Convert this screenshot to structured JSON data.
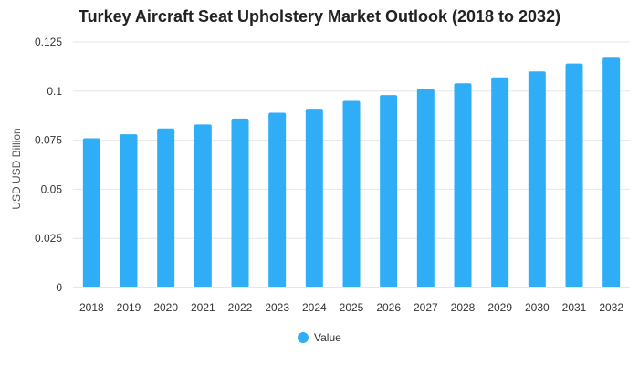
{
  "chart_data": {
    "type": "bar",
    "title": "Turkey Aircraft Seat Upholstery Market Outlook (2018 to 2032)",
    "xlabel": "",
    "ylabel": "USD USD Billion",
    "categories": [
      "2018",
      "2019",
      "2020",
      "2021",
      "2022",
      "2023",
      "2024",
      "2025",
      "2026",
      "2027",
      "2028",
      "2029",
      "2030",
      "2031",
      "2032"
    ],
    "series": [
      {
        "name": "Value",
        "values": [
          0.076,
          0.078,
          0.081,
          0.083,
          0.086,
          0.089,
          0.091,
          0.095,
          0.098,
          0.101,
          0.104,
          0.107,
          0.11,
          0.114,
          0.117
        ]
      }
    ],
    "ylim": [
      0,
      0.125
    ],
    "yticks": [
      "0",
      "0.025",
      "0.05",
      "0.075",
      "0.1",
      "0.125"
    ],
    "ytick_values": [
      0,
      0.025,
      0.05,
      0.075,
      0.1,
      0.125
    ],
    "grid": true,
    "legend_position": "bottom-center",
    "colors": {
      "bar": "#2FAEF7",
      "grid": "#E6E6E6",
      "axis": "#CCCCCC"
    }
  }
}
